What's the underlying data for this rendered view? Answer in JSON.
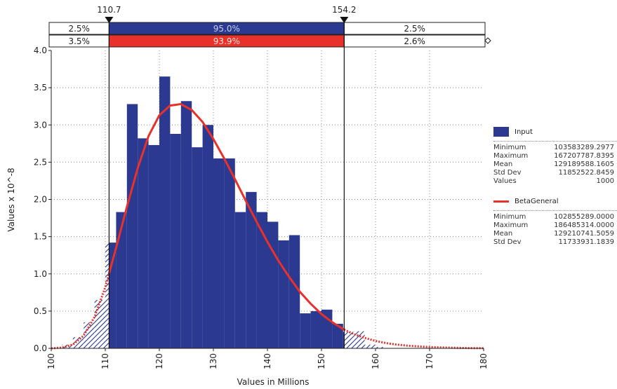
{
  "chart_data": {
    "type": "bar",
    "title": "",
    "xlabel": "Values in Millions",
    "ylabel": "Values x 10^-8",
    "xlim": [
      100,
      180
    ],
    "ylim": [
      0,
      4.0
    ],
    "xticks": [
      "100",
      "110",
      "120",
      "130",
      "140",
      "150",
      "160",
      "170",
      "180"
    ],
    "yticks": [
      "0.0",
      "0.5",
      "1.0",
      "1.5",
      "2.0",
      "2.5",
      "3.0",
      "3.5",
      "4.0"
    ],
    "grid": true,
    "bin_width": 2,
    "bins": [
      {
        "x": 102,
        "y": 0.05
      },
      {
        "x": 104,
        "y": 0.15
      },
      {
        "x": 106,
        "y": 0.35
      },
      {
        "x": 108,
        "y": 0.65
      },
      {
        "x": 110,
        "y": 1.42
      },
      {
        "x": 112,
        "y": 1.83
      },
      {
        "x": 114,
        "y": 3.28
      },
      {
        "x": 116,
        "y": 2.82
      },
      {
        "x": 118,
        "y": 2.73
      },
      {
        "x": 120,
        "y": 3.65
      },
      {
        "x": 122,
        "y": 2.88
      },
      {
        "x": 124,
        "y": 3.32
      },
      {
        "x": 126,
        "y": 2.7
      },
      {
        "x": 128,
        "y": 3.0
      },
      {
        "x": 130,
        "y": 2.55
      },
      {
        "x": 132,
        "y": 2.55
      },
      {
        "x": 134,
        "y": 1.83
      },
      {
        "x": 136,
        "y": 2.1
      },
      {
        "x": 138,
        "y": 1.83
      },
      {
        "x": 140,
        "y": 1.7
      },
      {
        "x": 142,
        "y": 1.45
      },
      {
        "x": 144,
        "y": 1.52
      },
      {
        "x": 146,
        "y": 0.47
      },
      {
        "x": 148,
        "y": 0.5
      },
      {
        "x": 150,
        "y": 0.52
      },
      {
        "x": 152,
        "y": 0.33
      },
      {
        "x": 154,
        "y": 0.22
      },
      {
        "x": 156,
        "y": 0.23
      },
      {
        "x": 158,
        "y": 0.05
      },
      {
        "x": 160,
        "y": 0.02
      }
    ],
    "fit_curve": {
      "name": "BetaGeneral",
      "points": [
        [
          100,
          0.0
        ],
        [
          102,
          0.01
        ],
        [
          104,
          0.05
        ],
        [
          106,
          0.17
        ],
        [
          108,
          0.42
        ],
        [
          110,
          0.82
        ],
        [
          112,
          1.35
        ],
        [
          114,
          1.9
        ],
        [
          116,
          2.42
        ],
        [
          118,
          2.85
        ],
        [
          120,
          3.13
        ],
        [
          122,
          3.26
        ],
        [
          124,
          3.28
        ],
        [
          126,
          3.2
        ],
        [
          128,
          3.04
        ],
        [
          130,
          2.81
        ],
        [
          132,
          2.55
        ],
        [
          134,
          2.27
        ],
        [
          136,
          1.98
        ],
        [
          138,
          1.7
        ],
        [
          140,
          1.43
        ],
        [
          142,
          1.18
        ],
        [
          144,
          0.96
        ],
        [
          146,
          0.76
        ],
        [
          148,
          0.6
        ],
        [
          150,
          0.46
        ],
        [
          152,
          0.35
        ],
        [
          154,
          0.26
        ],
        [
          156,
          0.19
        ],
        [
          158,
          0.14
        ],
        [
          160,
          0.1
        ],
        [
          162,
          0.07
        ],
        [
          164,
          0.05
        ],
        [
          166,
          0.035
        ],
        [
          168,
          0.025
        ],
        [
          170,
          0.018
        ],
        [
          172,
          0.012
        ],
        [
          174,
          0.008
        ],
        [
          176,
          0.005
        ],
        [
          178,
          0.003
        ],
        [
          180,
          0.002
        ]
      ]
    },
    "markers": {
      "left": 110.7,
      "right": 154.2,
      "left_label": "110.7",
      "right_label": "154.2"
    },
    "bands": {
      "input": {
        "left": "2.5%",
        "middle": "95.0%",
        "right": "2.5%"
      },
      "fit": {
        "left": "3.5%",
        "middle": "93.9%",
        "right": "2.6%"
      }
    },
    "colors": {
      "input": "#2b3990",
      "fit": "#e8312a",
      "hatch": "#2b3990"
    }
  },
  "legend": {
    "input": {
      "name": "Input",
      "stats": [
        {
          "label": "Minimum",
          "value": "103583289.2977"
        },
        {
          "label": "Maximum",
          "value": "167207787.8395"
        },
        {
          "label": "Mean",
          "value": "129189588.1605"
        },
        {
          "label": "Std Dev",
          "value": "11852522.8459"
        },
        {
          "label": "Values",
          "value": "1000"
        }
      ]
    },
    "fit": {
      "name": "BetaGeneral",
      "stats": [
        {
          "label": "Minimum",
          "value": "102855289.0000"
        },
        {
          "label": "Maximum",
          "value": "186485314.0000"
        },
        {
          "label": "Mean",
          "value": "129210741.5059"
        },
        {
          "label": "Std Dev",
          "value": "11733931.1839"
        }
      ]
    }
  }
}
